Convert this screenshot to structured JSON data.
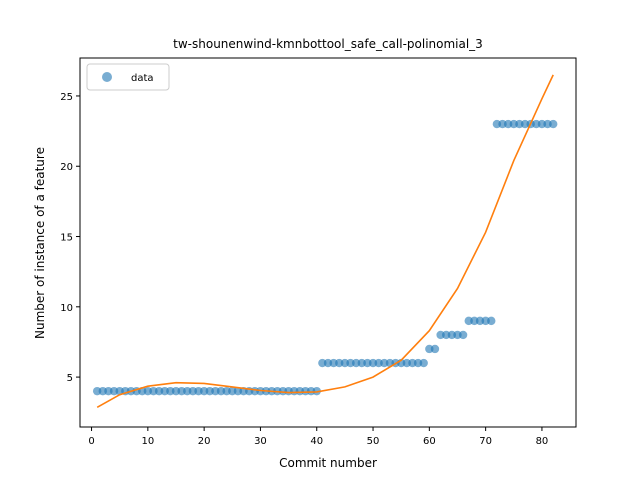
{
  "chart_data": {
    "type": "scatter",
    "title": "tw-shounenwind-kmnbottool_safe_call-polinomial_3",
    "xlabel": "Commit number",
    "ylabel": "Number of instance of a feature",
    "xlim": [
      -2.05,
      86.05
    ],
    "ylim": [
      1.45,
      27.7
    ],
    "xticks": [
      0,
      10,
      20,
      30,
      40,
      50,
      60,
      70,
      80
    ],
    "yticks": [
      5,
      10,
      15,
      20,
      25
    ],
    "grid": false,
    "legend": {
      "location": "upper-left",
      "entries": [
        "data"
      ]
    },
    "colors": {
      "data": "#1f77b4",
      "fit": "#ff7f0e"
    },
    "series": [
      {
        "name": "data",
        "kind": "scatter",
        "x": [
          1,
          2,
          3,
          4,
          5,
          6,
          7,
          8,
          9,
          10,
          11,
          12,
          13,
          14,
          15,
          16,
          17,
          18,
          19,
          20,
          21,
          22,
          23,
          24,
          25,
          26,
          27,
          28,
          29,
          30,
          31,
          32,
          33,
          34,
          35,
          36,
          37,
          38,
          39,
          40,
          41,
          42,
          43,
          44,
          45,
          46,
          47,
          48,
          49,
          50,
          51,
          52,
          53,
          54,
          55,
          56,
          57,
          58,
          59,
          60,
          61,
          62,
          63,
          64,
          65,
          66,
          67,
          68,
          69,
          70,
          71,
          72,
          73,
          74,
          75,
          76,
          77,
          78,
          79,
          80,
          81,
          82
        ],
        "y": [
          4,
          4,
          4,
          4,
          4,
          4,
          4,
          4,
          4,
          4,
          4,
          4,
          4,
          4,
          4,
          4,
          4,
          4,
          4,
          4,
          4,
          4,
          4,
          4,
          4,
          4,
          4,
          4,
          4,
          4,
          4,
          4,
          4,
          4,
          4,
          4,
          4,
          4,
          4,
          4,
          6,
          6,
          6,
          6,
          6,
          6,
          6,
          6,
          6,
          6,
          6,
          6,
          6,
          6,
          6,
          6,
          6,
          6,
          6,
          7,
          7,
          8,
          8,
          8,
          8,
          8,
          9,
          9,
          9,
          9,
          9,
          23,
          23,
          23,
          23,
          23,
          23,
          23,
          23,
          23,
          23,
          23
        ]
      },
      {
        "kind": "line",
        "x": [
          1,
          5,
          10,
          15,
          20,
          25,
          30,
          35,
          40,
          45,
          50,
          55,
          60,
          65,
          70,
          75,
          80,
          82
        ],
        "y": [
          2.85,
          3.75,
          4.35,
          4.6,
          4.55,
          4.3,
          4.05,
          3.9,
          3.95,
          4.3,
          5.0,
          6.2,
          8.3,
          11.3,
          15.3,
          20.4,
          24.8,
          26.5
        ]
      }
    ]
  }
}
